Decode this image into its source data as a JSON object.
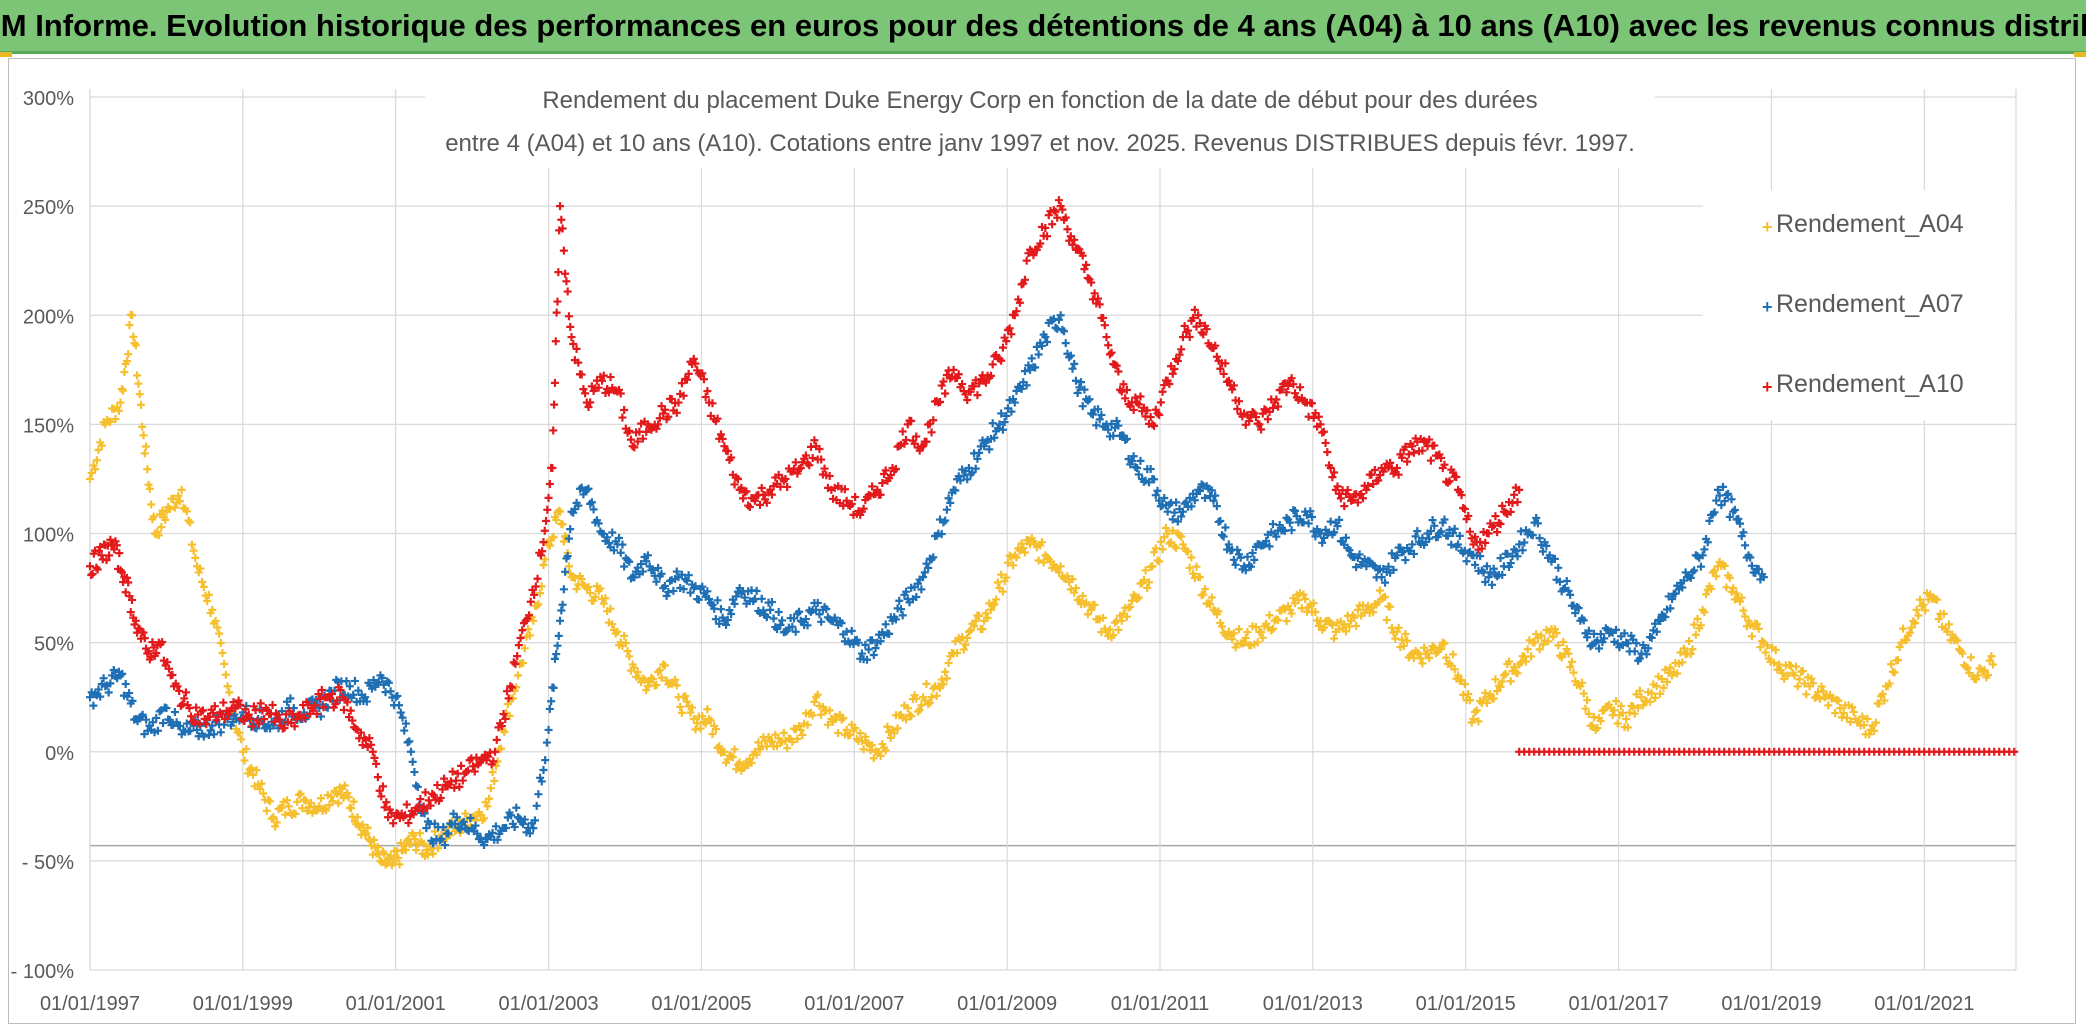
{
  "banner": {
    "title": "ADAM Informe. Evolution historique des performances en euros pour des détentions de 4 ans (A04) à 10 ans (A10) avec les revenus connus distribués",
    "background_color": "#7cc576"
  },
  "chart_data": {
    "type": "scatter",
    "title_line1": "Rendement du placement Duke Energy Corp en fonction de la date de début pour des durées",
    "title_line2": "entre 4 (A04) et 10 ans (A10). Cotations entre janv 1997 et nov. 2025. Revenus DISTRIBUES depuis févr. 1997.",
    "xlabel": "",
    "ylabel": "",
    "x_unit": "year",
    "xlim": [
      1997.0,
      2022.2
    ],
    "ylim": [
      -100,
      300
    ],
    "y_ticks": [
      300,
      250,
      200,
      150,
      100,
      50,
      0,
      -50,
      -100
    ],
    "y_tick_labels": [
      "300%",
      "250%",
      "200%",
      "150%",
      "100%",
      "50%",
      "0%",
      "- 50%",
      "- 100%"
    ],
    "x_ticks": [
      1997,
      1999,
      2001,
      2003,
      2005,
      2007,
      2009,
      2011,
      2013,
      2015,
      2017,
      2019,
      2021
    ],
    "x_tick_labels": [
      "01/01/1997",
      "01/01/1999",
      "01/01/2001",
      "01/01/2003",
      "01/01/2005",
      "01/01/2007",
      "01/01/2009",
      "01/01/2011",
      "01/01/2013",
      "01/01/2015",
      "01/01/2017",
      "01/01/2019",
      "01/01/2021"
    ],
    "grid": true,
    "legend_position": "right",
    "series": [
      {
        "name": "Rendement_A04",
        "color": "#f5bf2e",
        "x": [
          1997.0,
          1997.2,
          1997.4,
          1997.55,
          1997.7,
          1997.85,
          1998.0,
          1998.2,
          1998.4,
          1998.6,
          1998.8,
          1999.0,
          1999.2,
          1999.4,
          1999.6,
          1999.8,
          2000.0,
          2000.2,
          2000.35,
          2000.5,
          2000.65,
          2000.8,
          2000.95,
          2001.1,
          2001.25,
          2001.4,
          2001.6,
          2001.8,
          2002.0,
          2002.2,
          2002.4,
          2002.6,
          2002.8,
          2003.0,
          2003.15,
          2003.3,
          2003.5,
          2003.7,
          2003.9,
          2004.1,
          2004.3,
          2004.5,
          2004.7,
          2004.9,
          2005.1,
          2005.3,
          2005.5,
          2005.7,
          2005.9,
          2006.1,
          2006.3,
          2006.5,
          2006.7,
          2006.9,
          2007.1,
          2007.3,
          2007.5,
          2007.7,
          2007.9,
          2008.1,
          2008.3,
          2008.5,
          2008.7,
          2008.9,
          2009.1,
          2009.3,
          2009.5,
          2009.7,
          2009.9,
          2010.1,
          2010.3,
          2010.5,
          2010.7,
          2010.9,
          2011.1,
          2011.3,
          2011.5,
          2011.7,
          2011.9,
          2012.1,
          2012.3,
          2012.5,
          2012.7,
          2012.9,
          2013.1,
          2013.3,
          2013.5,
          2013.7,
          2013.9,
          2014.1,
          2014.3,
          2014.5,
          2014.7,
          2014.9,
          2015.1,
          2015.3,
          2015.5,
          2015.7,
          2015.9,
          2016.1,
          2016.3,
          2016.5,
          2016.7,
          2016.9,
          2017.1,
          2017.3,
          2017.5,
          2017.7,
          2017.9,
          2018.1,
          2018.3,
          2018.5,
          2018.7,
          2018.9,
          2019.1,
          2019.3,
          2019.5,
          2019.7,
          2019.9,
          2020.1,
          2020.3,
          2020.5,
          2020.7,
          2020.9,
          2021.1,
          2021.3,
          2021.5,
          2021.7,
          2021.9
        ],
        "values": [
          125,
          150,
          160,
          200,
          145,
          100,
          110,
          120,
          85,
          65,
          30,
          0,
          -15,
          -30,
          -25,
          -22,
          -25,
          -18,
          -20,
          -30,
          -40,
          -50,
          -52,
          -45,
          -40,
          -45,
          -38,
          -35,
          -30,
          -25,
          10,
          35,
          60,
          95,
          110,
          80,
          75,
          70,
          55,
          40,
          30,
          40,
          25,
          15,
          15,
          0,
          -5,
          0,
          5,
          5,
          10,
          25,
          15,
          10,
          5,
          0,
          10,
          20,
          25,
          30,
          45,
          55,
          60,
          75,
          90,
          95,
          90,
          85,
          75,
          65,
          55,
          60,
          70,
          85,
          100,
          95,
          80,
          65,
          55,
          50,
          55,
          60,
          65,
          70,
          60,
          55,
          60,
          65,
          70,
          55,
          45,
          45,
          50,
          35,
          15,
          25,
          35,
          40,
          50,
          55,
          45,
          30,
          10,
          20,
          15,
          25,
          30,
          35,
          45,
          65,
          85,
          75,
          60,
          50,
          40,
          35,
          30,
          25,
          20,
          15,
          10,
          30,
          50,
          65,
          70,
          55,
          45,
          35,
          40
        ]
      },
      {
        "name": "Rendement_A07",
        "color": "#1f6fb4",
        "x": [
          1997.0,
          1997.2,
          1997.4,
          1997.6,
          1997.8,
          1998.0,
          1998.2,
          1998.4,
          1998.6,
          1998.8,
          1999.0,
          1999.2,
          1999.4,
          1999.6,
          1999.8,
          2000.0,
          2000.2,
          2000.4,
          2000.6,
          2000.8,
          2001.0,
          2001.2,
          2001.4,
          2001.6,
          2001.8,
          2002.0,
          2002.2,
          2002.4,
          2002.6,
          2002.8,
          2003.0,
          2003.15,
          2003.3,
          2003.5,
          2003.7,
          2003.9,
          2004.1,
          2004.3,
          2004.5,
          2004.7,
          2004.9,
          2005.1,
          2005.3,
          2005.5,
          2005.7,
          2005.9,
          2006.1,
          2006.3,
          2006.5,
          2006.7,
          2006.9,
          2007.1,
          2007.3,
          2007.5,
          2007.7,
          2007.9,
          2008.1,
          2008.3,
          2008.5,
          2008.7,
          2008.9,
          2009.1,
          2009.3,
          2009.5,
          2009.7,
          2009.9,
          2010.1,
          2010.3,
          2010.5,
          2010.7,
          2010.9,
          2011.1,
          2011.3,
          2011.5,
          2011.7,
          2011.9,
          2012.1,
          2012.3,
          2012.5,
          2012.7,
          2012.9,
          2013.1,
          2013.3,
          2013.5,
          2013.7,
          2013.9,
          2014.1,
          2014.3,
          2014.5,
          2014.7,
          2014.9,
          2015.1,
          2015.3,
          2015.5,
          2015.7,
          2015.9,
          2016.1,
          2016.3,
          2016.5,
          2016.7,
          2016.9,
          2017.1,
          2017.3,
          2017.5,
          2017.7,
          2017.9,
          2018.1,
          2018.3,
          2018.5,
          2018.7,
          2018.9
        ],
        "values": [
          25,
          30,
          35,
          15,
          10,
          20,
          8,
          10,
          12,
          15,
          18,
          15,
          12,
          20,
          18,
          20,
          28,
          30,
          25,
          35,
          25,
          0,
          -35,
          -40,
          -30,
          -35,
          -40,
          -35,
          -30,
          -35,
          10,
          60,
          110,
          120,
          100,
          95,
          80,
          90,
          75,
          80,
          75,
          70,
          60,
          75,
          70,
          65,
          55,
          60,
          65,
          60,
          55,
          45,
          50,
          60,
          70,
          80,
          100,
          120,
          130,
          140,
          150,
          160,
          175,
          190,
          200,
          170,
          155,
          150,
          145,
          130,
          125,
          110,
          110,
          120,
          115,
          95,
          85,
          95,
          100,
          105,
          110,
          100,
          105,
          90,
          85,
          80,
          90,
          95,
          100,
          105,
          95,
          90,
          80,
          85,
          95,
          105,
          90,
          75,
          60,
          50,
          55,
          50,
          45,
          55,
          70,
          80,
          90,
          120,
          110,
          90,
          80
        ]
      },
      {
        "name": "Rendement_A10",
        "color": "#e31a1c",
        "x": [
          1997.0,
          1997.15,
          1997.3,
          1997.45,
          1997.6,
          1997.75,
          1997.9,
          1998.1,
          1998.3,
          1998.5,
          1998.7,
          1998.9,
          1999.1,
          1999.3,
          1999.5,
          1999.7,
          1999.9,
          2000.1,
          2000.3,
          2000.5,
          2000.7,
          2000.9,
          2001.1,
          2001.3,
          2001.5,
          2001.7,
          2001.9,
          2002.1,
          2002.3,
          2002.5,
          2002.7,
          2002.9,
          2003.05,
          2003.15,
          2003.3,
          2003.5,
          2003.7,
          2003.9,
          2004.1,
          2004.3,
          2004.5,
          2004.7,
          2004.9,
          2005.1,
          2005.3,
          2005.5,
          2005.7,
          2005.9,
          2006.1,
          2006.3,
          2006.5,
          2006.7,
          2006.9,
          2007.1,
          2007.3,
          2007.5,
          2007.7,
          2007.9,
          2008.1,
          2008.3,
          2008.5,
          2008.7,
          2008.9,
          2009.1,
          2009.3,
          2009.5,
          2009.7,
          2009.9,
          2010.1,
          2010.3,
          2010.5,
          2010.7,
          2010.9,
          2011.1,
          2011.3,
          2011.5,
          2011.7,
          2011.9,
          2012.1,
          2012.3,
          2012.5,
          2012.7,
          2012.9,
          2013.1,
          2013.3,
          2013.5,
          2013.7,
          2013.9,
          2014.1,
          2014.3,
          2014.5,
          2014.7,
          2014.9,
          2015.1,
          2015.3,
          2015.5,
          2015.7
        ],
        "values": [
          85,
          90,
          95,
          80,
          60,
          45,
          50,
          30,
          20,
          15,
          18,
          20,
          15,
          20,
          12,
          15,
          20,
          25,
          25,
          10,
          0,
          -30,
          -30,
          -25,
          -20,
          -15,
          -10,
          -5,
          0,
          30,
          60,
          90,
          130,
          250,
          190,
          160,
          170,
          165,
          140,
          150,
          155,
          160,
          180,
          160,
          140,
          120,
          115,
          120,
          125,
          130,
          140,
          120,
          115,
          110,
          120,
          130,
          150,
          140,
          160,
          175,
          165,
          170,
          180,
          200,
          230,
          240,
          250,
          230,
          215,
          190,
          165,
          160,
          150,
          170,
          190,
          200,
          185,
          170,
          155,
          150,
          160,
          170,
          160,
          150,
          120,
          115,
          120,
          130,
          130,
          140,
          140,
          130,
          120,
          95,
          100,
          110,
          120
        ]
      },
      {
        "name": "Rendement_A10 (zéro)",
        "color": "#e31a1c",
        "x_range": [
          2015.7,
          2022.2
        ],
        "value": 0
      }
    ]
  },
  "legend": {
    "items": [
      {
        "label": "Rendement_A04",
        "color": "#f5bf2e"
      },
      {
        "label": "Rendement_A07",
        "color": "#1f6fb4"
      },
      {
        "label": "Rendement_A10",
        "color": "#e31a1c"
      }
    ]
  }
}
